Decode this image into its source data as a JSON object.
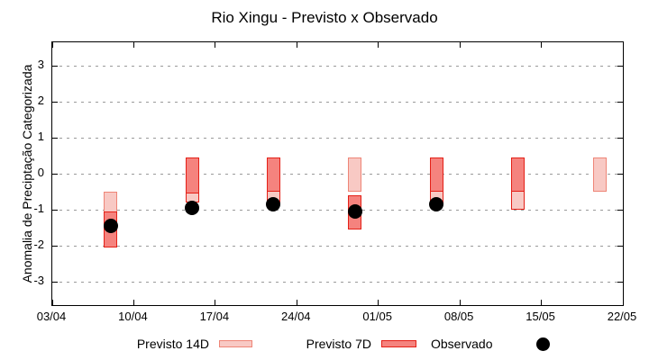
{
  "chart_data": {
    "type": "bar",
    "title": "Rio Xingu - Previsto x Observado",
    "xlabel": "",
    "ylabel": "Anomalia de Preciptação Categorizada",
    "ylim": [
      -3.65,
      3.65
    ],
    "yticks": [
      3,
      2,
      1,
      0,
      -1,
      -2,
      -3
    ],
    "grid": "horizontal-dashed",
    "x_axis": {
      "span_days": 49,
      "ticks": [
        {
          "label": "03/04",
          "day": 0
        },
        {
          "label": "10/04",
          "day": 7
        },
        {
          "label": "17/04",
          "day": 14
        },
        {
          "label": "24/04",
          "day": 21
        },
        {
          "label": "01/05",
          "day": 28
        },
        {
          "label": "08/05",
          "day": 35
        },
        {
          "label": "15/05",
          "day": 42
        },
        {
          "label": "22/05",
          "day": 49
        }
      ]
    },
    "categories": [
      "08/04",
      "15/04",
      "22/04",
      "29/04",
      "06/05",
      "13/05",
      "20/05"
    ],
    "group_days": [
      5,
      12,
      19,
      26,
      33,
      40,
      47
    ],
    "series": [
      {
        "name": "Previsto 14D",
        "ranges": [
          [
            -0.5,
            -2.05
          ],
          [
            0.45,
            -0.8
          ],
          [
            0.45,
            -0.85
          ],
          [
            0.45,
            -0.5
          ],
          [
            0.45,
            -0.85
          ],
          [
            0.45,
            -1.0
          ],
          [
            0.45,
            -0.5
          ]
        ]
      },
      {
        "name": "Previsto 7D",
        "ranges": [
          [
            -1.05,
            -2.05
          ],
          [
            0.45,
            -0.55
          ],
          [
            0.45,
            -0.5
          ],
          [
            -0.6,
            -1.55
          ],
          [
            0.45,
            -0.5
          ],
          [
            0.45,
            -0.5
          ],
          null
        ]
      },
      {
        "name": "Observado",
        "values": [
          -1.45,
          -0.95,
          -0.85,
          -1.05,
          -0.85,
          null,
          null
        ]
      }
    ],
    "legend": [
      {
        "label": "Previsto 14D",
        "type": "box"
      },
      {
        "label": "Previsto 7D",
        "type": "box"
      },
      {
        "label": "Observado",
        "type": "dot"
      }
    ],
    "colors": {
      "previsto14_fill": "#f8c9c4",
      "previsto14_border": "#ee8577",
      "previsto7_fill": "#f5837e",
      "previsto7_border": "#e42017",
      "observado": "#000000",
      "grid": "#9a9a9a",
      "axis": "#000000"
    }
  }
}
